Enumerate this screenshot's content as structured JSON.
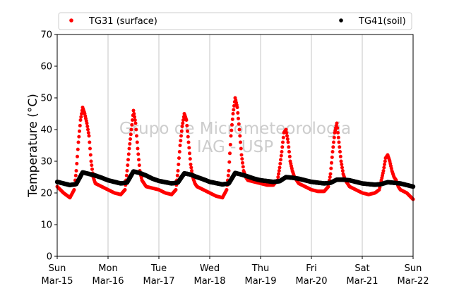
{
  "chart_data": {
    "type": "scatter",
    "title": "",
    "xlabel": "",
    "ylabel": "Temperature (°C)",
    "ylim": [
      0,
      70
    ],
    "yticks": [
      0,
      10,
      20,
      30,
      40,
      50,
      60,
      70
    ],
    "xlim": [
      "2020-03-15",
      "2020-03-22"
    ],
    "xticks": [
      {
        "value": "2020-03-15",
        "line1": "Sun",
        "line2": "Mar-15"
      },
      {
        "value": "2020-03-16",
        "line1": "Mon",
        "line2": "Mar-16"
      },
      {
        "value": "2020-03-17",
        "line1": "Tue",
        "line2": "Mar-17"
      },
      {
        "value": "2020-03-18",
        "line1": "Wed",
        "line2": "Mar-18"
      },
      {
        "value": "2020-03-19",
        "line1": "Thu",
        "line2": "Mar-19"
      },
      {
        "value": "2020-03-20",
        "line1": "Fri",
        "line2": "Mar-20"
      },
      {
        "value": "2020-03-21",
        "line1": "Sat",
        "line2": "Mar-21"
      },
      {
        "value": "2020-03-22",
        "line1": "Sun",
        "line2": "Mar-22"
      }
    ],
    "grid": "vertical",
    "legend_position": "top",
    "watermark": [
      "Grupo de Micrometeorologia",
      "IAG - USP"
    ],
    "series": [
      {
        "name": "TG31 (surface)",
        "color": "#ff0000",
        "x": [
          "2020-03-15 00:00",
          "2020-03-15 03:00",
          "2020-03-15 06:00",
          "2020-03-15 08:00",
          "2020-03-15 09:00",
          "2020-03-15 10:00",
          "2020-03-15 11:00",
          "2020-03-15 12:00",
          "2020-03-15 13:00",
          "2020-03-15 14:00",
          "2020-03-15 15:00",
          "2020-03-15 16:00",
          "2020-03-15 17:00",
          "2020-03-15 18:00",
          "2020-03-15 21:00",
          "2020-03-16 00:00",
          "2020-03-16 03:00",
          "2020-03-16 06:00",
          "2020-03-16 08:00",
          "2020-03-16 09:00",
          "2020-03-16 10:00",
          "2020-03-16 11:00",
          "2020-03-16 12:00",
          "2020-03-16 13:00",
          "2020-03-16 14:00",
          "2020-03-16 15:00",
          "2020-03-16 16:00",
          "2020-03-16 17:00",
          "2020-03-16 18:00",
          "2020-03-16 21:00",
          "2020-03-17 00:00",
          "2020-03-17 03:00",
          "2020-03-17 06:00",
          "2020-03-17 08:00",
          "2020-03-17 09:00",
          "2020-03-17 10:00",
          "2020-03-17 11:00",
          "2020-03-17 12:00",
          "2020-03-17 13:00",
          "2020-03-17 14:00",
          "2020-03-17 15:00",
          "2020-03-17 16:00",
          "2020-03-17 17:00",
          "2020-03-17 18:00",
          "2020-03-17 21:00",
          "2020-03-18 00:00",
          "2020-03-18 03:00",
          "2020-03-18 06:00",
          "2020-03-18 08:00",
          "2020-03-18 09:00",
          "2020-03-18 10:00",
          "2020-03-18 11:00",
          "2020-03-18 12:00",
          "2020-03-18 13:00",
          "2020-03-18 14:00",
          "2020-03-18 15:00",
          "2020-03-18 16:00",
          "2020-03-18 17:00",
          "2020-03-18 18:00",
          "2020-03-18 21:00",
          "2020-03-19 00:00",
          "2020-03-19 03:00",
          "2020-03-19 06:00",
          "2020-03-19 08:00",
          "2020-03-19 09:00",
          "2020-03-19 10:00",
          "2020-03-19 11:00",
          "2020-03-19 12:00",
          "2020-03-19 13:00",
          "2020-03-19 14:00",
          "2020-03-19 15:00",
          "2020-03-19 16:00",
          "2020-03-19 17:00",
          "2020-03-19 18:00",
          "2020-03-19 21:00",
          "2020-03-20 00:00",
          "2020-03-20 03:00",
          "2020-03-20 06:00",
          "2020-03-20 08:00",
          "2020-03-20 09:00",
          "2020-03-20 10:00",
          "2020-03-20 11:00",
          "2020-03-20 12:00",
          "2020-03-20 13:00",
          "2020-03-20 14:00",
          "2020-03-20 15:00",
          "2020-03-20 16:00",
          "2020-03-20 17:00",
          "2020-03-20 18:00",
          "2020-03-20 21:00",
          "2020-03-21 00:00",
          "2020-03-21 03:00",
          "2020-03-21 06:00",
          "2020-03-21 08:00",
          "2020-03-21 09:00",
          "2020-03-21 10:00",
          "2020-03-21 11:00",
          "2020-03-21 12:00",
          "2020-03-21 13:00",
          "2020-03-21 14:00",
          "2020-03-21 15:00",
          "2020-03-21 16:00",
          "2020-03-21 17:00",
          "2020-03-21 18:00",
          "2020-03-21 21:00",
          "2020-03-22 00:00"
        ],
        "y": [
          22,
          20,
          18.5,
          21,
          27,
          36,
          43,
          47,
          45,
          42,
          38,
          30,
          25,
          23,
          22,
          21,
          20,
          19.5,
          21,
          27,
          34,
          40,
          46,
          42,
          34,
          27,
          24,
          23,
          22,
          21.5,
          21,
          20,
          19.5,
          21,
          27,
          35,
          41,
          45,
          43,
          36,
          29,
          25,
          23,
          22,
          21,
          20,
          19,
          18.5,
          21,
          27,
          38,
          45,
          50,
          47,
          40,
          32,
          27,
          25,
          24,
          23.5,
          23,
          22.5,
          22.5,
          24,
          28,
          33,
          39,
          40,
          36,
          30,
          27,
          25,
          24,
          23,
          22,
          21,
          20.5,
          20.5,
          22,
          26,
          33,
          39,
          42,
          36,
          30,
          26,
          24,
          23,
          22,
          21,
          20,
          19.5,
          20,
          21,
          24,
          27,
          31,
          32,
          30,
          27,
          25,
          24,
          22,
          21,
          20,
          18
        ]
      },
      {
        "name": "TG41(soil)",
        "color": "#000000",
        "x": [
          "2020-03-15 00:00",
          "2020-03-15 06:00",
          "2020-03-15 09:00",
          "2020-03-15 12:00",
          "2020-03-15 15:00",
          "2020-03-15 18:00",
          "2020-03-15 21:00",
          "2020-03-16 00:00",
          "2020-03-16 06:00",
          "2020-03-16 09:00",
          "2020-03-16 12:00",
          "2020-03-16 15:00",
          "2020-03-16 18:00",
          "2020-03-16 21:00",
          "2020-03-17 00:00",
          "2020-03-17 06:00",
          "2020-03-17 09:00",
          "2020-03-17 12:00",
          "2020-03-17 15:00",
          "2020-03-17 18:00",
          "2020-03-17 21:00",
          "2020-03-18 00:00",
          "2020-03-18 06:00",
          "2020-03-18 09:00",
          "2020-03-18 12:00",
          "2020-03-18 15:00",
          "2020-03-18 18:00",
          "2020-03-18 21:00",
          "2020-03-19 00:00",
          "2020-03-19 06:00",
          "2020-03-19 09:00",
          "2020-03-19 12:00",
          "2020-03-19 15:00",
          "2020-03-19 18:00",
          "2020-03-19 21:00",
          "2020-03-20 00:00",
          "2020-03-20 06:00",
          "2020-03-20 09:00",
          "2020-03-20 12:00",
          "2020-03-20 15:00",
          "2020-03-20 18:00",
          "2020-03-20 21:00",
          "2020-03-21 00:00",
          "2020-03-21 06:00",
          "2020-03-21 09:00",
          "2020-03-21 12:00",
          "2020-03-21 15:00",
          "2020-03-21 18:00",
          "2020-03-21 21:00",
          "2020-03-22 00:00"
        ],
        "y": [
          23.5,
          22.5,
          22.8,
          26.5,
          26,
          25.5,
          24.8,
          24,
          23,
          23.3,
          26.8,
          26.3,
          25.5,
          24.5,
          23.8,
          23,
          23.3,
          26.2,
          25.8,
          25,
          24.3,
          23.5,
          22.7,
          23,
          26.3,
          25.8,
          25.2,
          24.5,
          24,
          23.5,
          23.7,
          25,
          24.8,
          24.5,
          24,
          23.5,
          23,
          23.2,
          24.2,
          24.2,
          24,
          23.5,
          23,
          22.6,
          22.8,
          23.4,
          23.2,
          23,
          22.5,
          22
        ]
      }
    ]
  }
}
